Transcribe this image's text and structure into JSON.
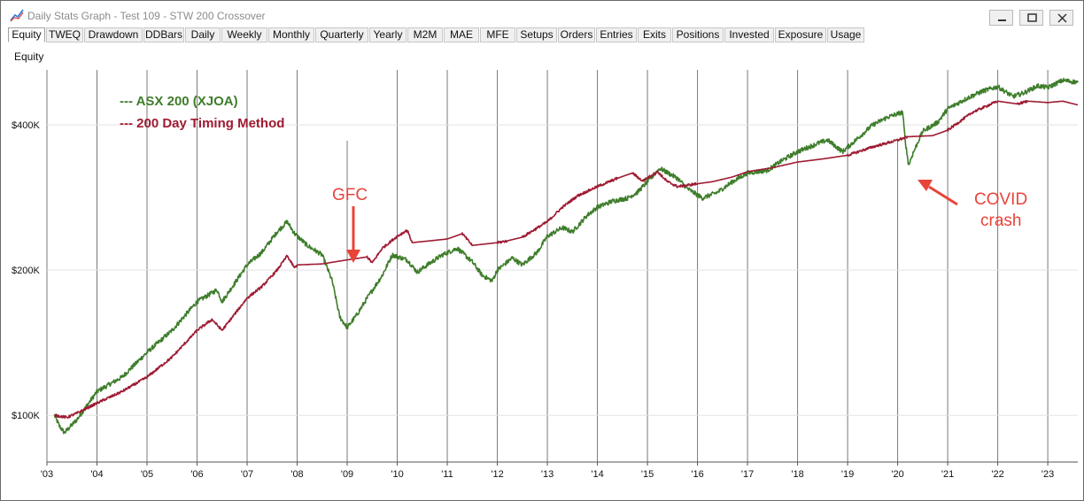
{
  "window": {
    "title": "Daily Stats Graph - Test 109 - STW 200 Crossover",
    "icon": "graph-app-icon",
    "buttons": [
      "minimize-icon",
      "maximize-icon",
      "close-icon"
    ]
  },
  "tabs": [
    {
      "label": "Equity",
      "active": true
    },
    {
      "label": "TWEQ"
    },
    {
      "label": "Drawdown"
    },
    {
      "label": "DDBars"
    },
    {
      "label": "Daily"
    },
    {
      "label": "Weekly"
    },
    {
      "label": "Monthly"
    },
    {
      "label": "Quarterly"
    },
    {
      "label": "Yearly"
    },
    {
      "label": "M2M"
    },
    {
      "label": "MAE"
    },
    {
      "label": "MFE"
    },
    {
      "label": "Setups"
    },
    {
      "label": "Orders"
    },
    {
      "label": "Entries"
    },
    {
      "label": "Exits"
    },
    {
      "label": "Positions"
    },
    {
      "label": "Invested"
    },
    {
      "label": "Exposure"
    },
    {
      "label": "Usage"
    }
  ],
  "chart_data": {
    "type": "line",
    "ylabel": "Equity",
    "xlabel": "",
    "y_scale": "log",
    "xlim": [
      2003.0,
      2023.6
    ],
    "ylim": [
      80000,
      520000
    ],
    "yticks": [
      {
        "value": 100000,
        "label": "$100K"
      },
      {
        "value": 200000,
        "label": "$200K"
      },
      {
        "value": 400000,
        "label": "$400K"
      }
    ],
    "xticks": [
      {
        "value": 2003,
        "label": "'03"
      },
      {
        "value": 2004,
        "label": "'04"
      },
      {
        "value": 2005,
        "label": "'05"
      },
      {
        "value": 2006,
        "label": "'06"
      },
      {
        "value": 2007,
        "label": "'07"
      },
      {
        "value": 2008,
        "label": "'08"
      },
      {
        "value": 2009,
        "label": "'09"
      },
      {
        "value": 2010,
        "label": "'10"
      },
      {
        "value": 2011,
        "label": "'11"
      },
      {
        "value": 2012,
        "label": "'12"
      },
      {
        "value": 2013,
        "label": "'13"
      },
      {
        "value": 2014,
        "label": "'14"
      },
      {
        "value": 2015,
        "label": "'15"
      },
      {
        "value": 2016,
        "label": "'16"
      },
      {
        "value": 2017,
        "label": "'17"
      },
      {
        "value": 2018,
        "label": "'18"
      },
      {
        "value": 2019,
        "label": "'19"
      },
      {
        "value": 2020,
        "label": "'20"
      },
      {
        "value": 2021,
        "label": "'21"
      },
      {
        "value": 2022,
        "label": "'22"
      },
      {
        "value": 2023,
        "label": "'23"
      }
    ],
    "grid": "vertical lines at years, horizontal at $100K/$200K/$400K",
    "legend_placement": "top-left",
    "series": [
      {
        "name": "--- ASX 200 (XJOA)",
        "color": "#3e7d2b",
        "x": [
          2003.15,
          2003.25,
          2003.35,
          2003.6,
          2004.0,
          2004.5,
          2005.0,
          2005.5,
          2006.0,
          2006.4,
          2006.5,
          2007.0,
          2007.3,
          2007.6,
          2007.8,
          2007.95,
          2008.2,
          2008.5,
          2008.7,
          2008.85,
          2009.0,
          2009.2,
          2009.4,
          2009.7,
          2009.9,
          2010.2,
          2010.4,
          2010.6,
          2010.9,
          2011.2,
          2011.5,
          2011.7,
          2011.9,
          2012.0,
          2012.3,
          2012.5,
          2012.8,
          2013.0,
          2013.3,
          2013.5,
          2013.8,
          2014.0,
          2014.3,
          2014.6,
          2014.8,
          2015.0,
          2015.25,
          2015.6,
          2015.8,
          2016.1,
          2016.4,
          2016.7,
          2017.0,
          2017.4,
          2017.7,
          2018.0,
          2018.4,
          2018.6,
          2018.9,
          2019.2,
          2019.5,
          2019.8,
          2020.1,
          2020.15,
          2020.22,
          2020.3,
          2020.5,
          2020.8,
          2021.0,
          2021.4,
          2021.7,
          2022.0,
          2022.3,
          2022.5,
          2022.8,
          2023.0,
          2023.3,
          2023.6
        ],
        "values": [
          100000,
          95000,
          92000,
          98000,
          112000,
          120000,
          135000,
          150000,
          172000,
          182000,
          172000,
          205000,
          218000,
          240000,
          252000,
          238000,
          225000,
          215000,
          190000,
          160000,
          152000,
          162000,
          175000,
          195000,
          215000,
          210000,
          198000,
          205000,
          215000,
          222000,
          208000,
          195000,
          190000,
          200000,
          212000,
          205000,
          218000,
          235000,
          245000,
          240000,
          260000,
          270000,
          278000,
          282000,
          290000,
          305000,
          325000,
          310000,
          295000,
          282000,
          290000,
          305000,
          318000,
          322000,
          338000,
          352000,
          366000,
          372000,
          352000,
          375000,
          400000,
          415000,
          425000,
          372000,
          330000,
          348000,
          388000,
          405000,
          432000,
          455000,
          470000,
          480000,
          458000,
          465000,
          482000,
          478000,
          495000,
          490000
        ]
      },
      {
        "name": "--- 200 Day Timing Method",
        "color": "#9e1b32",
        "x": [
          2003.15,
          2003.4,
          2003.6,
          2004.0,
          2004.5,
          2005.0,
          2005.5,
          2006.0,
          2006.3,
          2006.5,
          2007.0,
          2007.3,
          2007.6,
          2007.8,
          2007.95,
          2008.0,
          2008.5,
          2009.0,
          2009.4,
          2009.5,
          2009.7,
          2010.0,
          2010.2,
          2010.3,
          2011.0,
          2011.3,
          2011.5,
          2012.0,
          2012.2,
          2012.5,
          2013.0,
          2013.3,
          2013.6,
          2014.0,
          2014.4,
          2014.7,
          2014.9,
          2015.2,
          2015.4,
          2015.6,
          2015.8,
          2016.0,
          2016.3,
          2016.7,
          2017.0,
          2017.5,
          2018.0,
          2018.5,
          2019.0,
          2019.5,
          2020.0,
          2020.2,
          2020.7,
          2021.0,
          2021.5,
          2022.0,
          2022.4,
          2022.6,
          2023.0,
          2023.3,
          2023.6
        ],
        "values": [
          100000,
          99000,
          101000,
          106000,
          112000,
          120000,
          132000,
          150000,
          158000,
          150000,
          175000,
          185000,
          200000,
          214000,
          202000,
          205000,
          206000,
          210000,
          213000,
          207000,
          222000,
          235000,
          242000,
          228000,
          232000,
          238000,
          225000,
          228000,
          230000,
          234000,
          252000,
          270000,
          285000,
          298000,
          310000,
          318000,
          306000,
          320000,
          305000,
          298000,
          300000,
          302000,
          305000,
          312000,
          320000,
          326000,
          335000,
          340000,
          346000,
          360000,
          372000,
          378000,
          380000,
          390000,
          425000,
          448000,
          442000,
          448000,
          445000,
          448000,
          440000
        ]
      }
    ],
    "annotations": [
      {
        "text": "GFC",
        "color": "#e8443a"
      },
      {
        "text": "COVID",
        "color": "#e8443a"
      },
      {
        "text": "crash",
        "color": "#e8443a"
      }
    ]
  }
}
